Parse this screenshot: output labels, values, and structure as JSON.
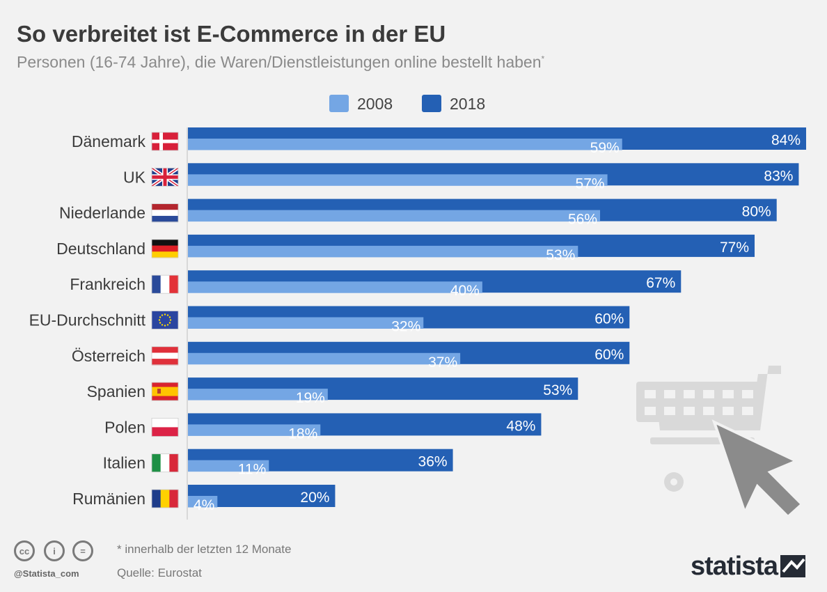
{
  "header": {
    "title": "So verbreitet ist E-Commerce in der EU",
    "subtitle": "Personen (16-74 Jahre), die Waren/Dienstleistungen online bestellt haben",
    "subtitle_mark": "*"
  },
  "chart_data": {
    "type": "bar",
    "orientation": "horizontal",
    "title": "So verbreitet ist E-Commerce in der EU",
    "subtitle": "Personen (16-74 Jahre), die Waren/Dienstleistungen online bestellt haben*",
    "categories": [
      "Dänemark",
      "UK",
      "Niederlande",
      "Deutschland",
      "Frankreich",
      "EU-Durchschnitt",
      "Österreich",
      "Spanien",
      "Polen",
      "Italien",
      "Rumänien"
    ],
    "series": [
      {
        "name": "2008",
        "color": "#74a6e4",
        "values": [
          59,
          57,
          56,
          53,
          40,
          32,
          37,
          19,
          18,
          11,
          4
        ]
      },
      {
        "name": "2018",
        "color": "#2460b4",
        "values": [
          84,
          83,
          80,
          77,
          67,
          60,
          60,
          53,
          48,
          36,
          20
        ]
      }
    ],
    "value_suffix": "%",
    "xlim": [
      0,
      84
    ],
    "legend_position": "top-center",
    "grid": false
  },
  "footer": {
    "handle": "@Statista_com",
    "footnote": "* innerhalb der letzten 12 Monate",
    "source": "Quelle: Eurostat",
    "brand": "statista",
    "license_icons": [
      "creative-commons-icon",
      "attribution-icon",
      "no-derivatives-icon"
    ]
  },
  "decoration": {
    "icons": [
      "shopping-cart-icon",
      "mouse-cursor-icon"
    ]
  }
}
